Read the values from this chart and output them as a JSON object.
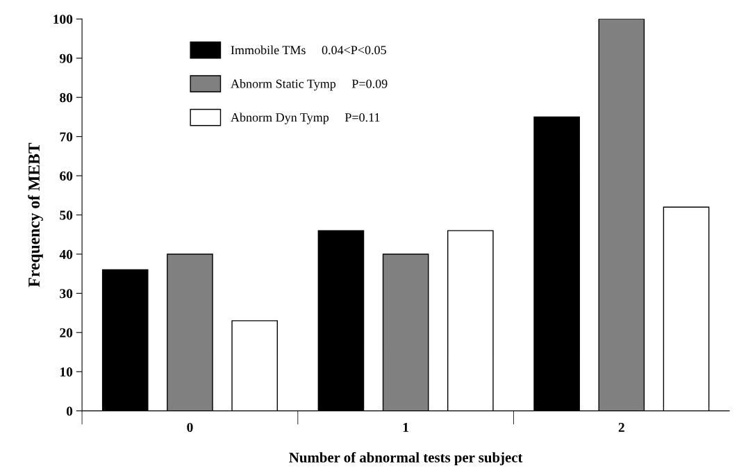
{
  "chart_data": {
    "type": "bar",
    "xlabel": "Number of abnormal tests per subject",
    "ylabel": "Frequency of MEBT",
    "categories": [
      "0",
      "1",
      "2"
    ],
    "series": [
      {
        "name": "Immobile TMs     0.04<P<0.05",
        "color": "#000000",
        "values": [
          36,
          46,
          75
        ]
      },
      {
        "name": "Abnorm Static Tymp     P=0.09",
        "color": "#808080",
        "values": [
          40,
          40,
          100
        ]
      },
      {
        "name": "Abnorm Dyn Tymp     P=0.11",
        "color": "#ffffff",
        "values": [
          23,
          46,
          52
        ]
      }
    ],
    "ylim": [
      0,
      100
    ],
    "yticks": [
      0,
      10,
      20,
      30,
      40,
      50,
      60,
      70,
      80,
      90,
      100
    ],
    "grid": false,
    "legend": "top left"
  }
}
